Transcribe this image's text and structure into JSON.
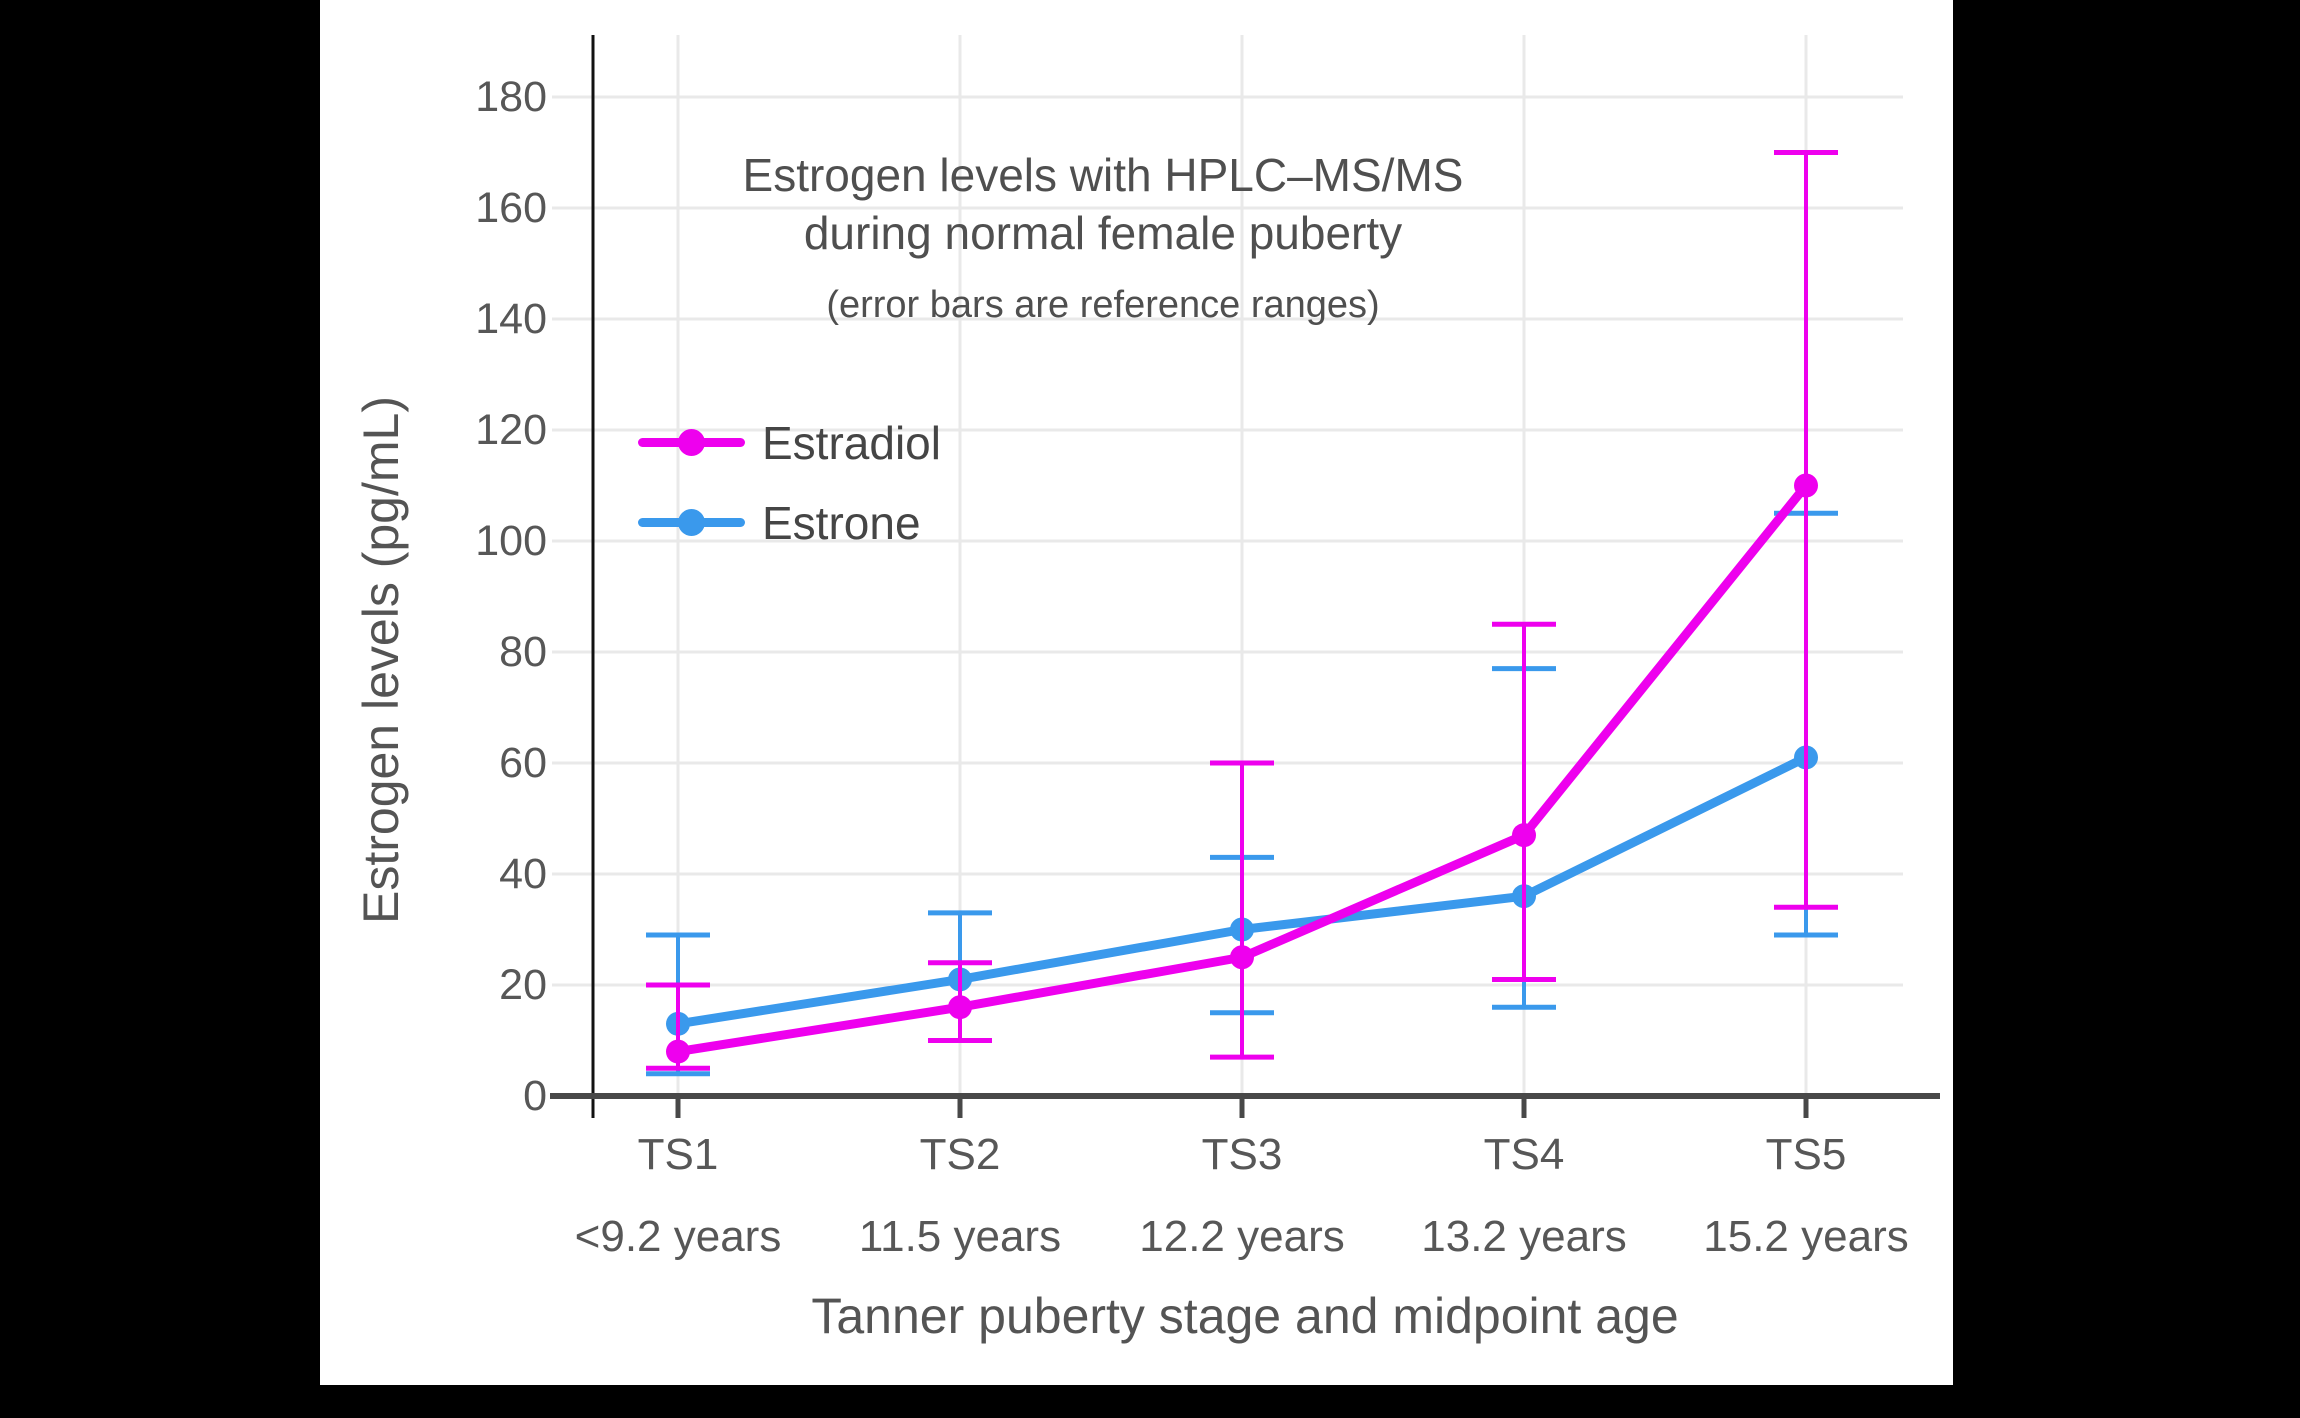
{
  "chart_data": {
    "type": "line",
    "title": "Estrogen levels with HPLC–MS/MS",
    "title_line2": "during normal female puberty",
    "subtitle": "(error bars are reference ranges)",
    "xlabel": "Tanner puberty stage and midpoint age",
    "ylabel": "Estrogen levels (pg/mL)",
    "ylim": [
      0,
      180
    ],
    "yticks": [
      0,
      20,
      40,
      60,
      80,
      100,
      120,
      140,
      160,
      180
    ],
    "grid": true,
    "categories": [
      "TS1",
      "TS2",
      "TS3",
      "TS4",
      "TS5"
    ],
    "category_ages": [
      "<9.2 years",
      "11.5 years",
      "12.2 years",
      "13.2 years",
      "15.2 years"
    ],
    "legend_position": "upper-left-inside",
    "legend_labels": [
      "Estradiol",
      "Estrone"
    ],
    "series": [
      {
        "name": "Estrone",
        "color": "#3A99EC",
        "values": [
          13,
          21,
          30,
          36,
          61
        ],
        "error_low": [
          4,
          10,
          15,
          16,
          29
        ],
        "error_high": [
          29,
          33,
          43,
          77,
          105
        ]
      },
      {
        "name": "Estradiol",
        "color": "#EE00EE",
        "values": [
          8,
          16,
          25,
          47,
          110
        ],
        "error_low": [
          5,
          10,
          7,
          21,
          34
        ],
        "error_high": [
          20,
          24,
          60,
          85,
          170
        ]
      }
    ],
    "colors": {
      "figure_background": "#ffffff",
      "page_background": "#000000",
      "gridline": "#e9e9e9",
      "x_axis_spine": "#484848",
      "y_axis_spine": "#111111",
      "text": "#545454"
    }
  }
}
